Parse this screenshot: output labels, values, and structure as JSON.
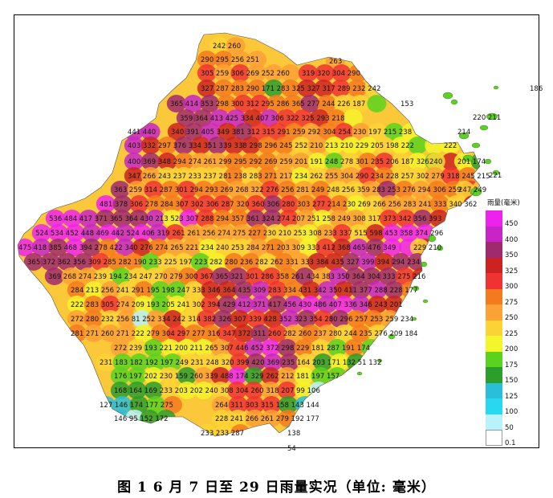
{
  "caption": "图 1  6 月 7 日至 29 日雨量实况（单位: 毫米）",
  "legend": {
    "title": "雨量(毫米)",
    "bins": [
      {
        "label": "450",
        "color": "#ee22ee"
      },
      {
        "label": "400",
        "color": "#c824c8"
      },
      {
        "label": "350",
        "color": "#a02a6e"
      },
      {
        "label": "325",
        "color": "#cc2222"
      },
      {
        "label": "300",
        "color": "#f03232"
      },
      {
        "label": "275",
        "color": "#f57a1e"
      },
      {
        "label": "250",
        "color": "#fba135"
      },
      {
        "label": "225",
        "color": "#fbd337"
      },
      {
        "label": "200",
        "color": "#f5f52b"
      },
      {
        "label": "175",
        "color": "#5ad21e"
      },
      {
        "label": "150",
        "color": "#2b9e2b"
      },
      {
        "label": "125",
        "color": "#2abfd9"
      },
      {
        "label": "100",
        "color": "#28d7f0"
      },
      {
        "label": "50",
        "color": "#b8f2fc"
      },
      {
        "label": "0.1",
        "color": "#ffffff"
      }
    ]
  },
  "stations": [
    [
      "242 260",
      247,
      41
    ],
    [
      "290 295 256 251",
      232,
      58
    ],
    [
      "263",
      392,
      60
    ],
    [
      "305 259 306 269 252 260",
      232,
      75
    ],
    [
      "319 320 304 290",
      358,
      75
    ],
    [
      "186",
      642,
      94
    ],
    [
      "327 287 283 290 171 283 325 327 317 289 232 242",
      232,
      94
    ],
    [
      "365 414 353 298 300 312 295 286 365 277 244 226 187",
      194,
      113
    ],
    [
      "153",
      481,
      113
    ],
    [
      "220 211",
      571,
      130
    ],
    [
      "359 364 413 425 334 407 306 322 325 293 218",
      206,
      131
    ],
    [
      "441 440",
      141,
      148
    ],
    [
      "340 391 405 349 381 312 315 291 259 292 304 254 230 197 215 238",
      195,
      148
    ],
    [
      "214",
      552,
      148
    ],
    [
      "222",
      535,
      165
    ],
    [
      "403 332 297 376 334 351 339 338 298 296 245 252 210 213 210 229 205 198 222",
      141,
      165
    ],
    [
      "400 369 348 294 274 261 299 295 292 269 259 201 191 248 278 301 235 206 187 326",
      141,
      185
    ],
    [
      "240",
      517,
      185
    ],
    [
      "201 174",
      552,
      185
    ],
    [
      "221",
      591,
      202
    ],
    [
      "347 266 243 237 233 237 281 238 283 271 217 234 262 255 304 290 234 228 257 302 279 318 245 215",
      141,
      203
    ],
    [
      "363 259 314 287 301 294 293 269 268 322 276 256 281 249 248 256 359 283 253 276 294 306 259",
      124,
      220
    ],
    [
      "247 249",
      553,
      220
    ],
    [
      "481 378 306 278 284 307 302 306 287 320 360 306 280 303 277 214 230 269 266 256 283 241 333 340 362",
      106,
      238
    ],
    [
      "536 484 417 371 365 364 430 213 523 307 288 294 357 361 324 274 207 251 258 249 308 317 373 342 356 393",
      43,
      256
    ],
    [
      "524 534 452 448 469 442 524 406 319 261 261 256 274 275 227 230 210 253 308 233 337 515 598 453 358 374 296",
      26,
      274
    ],
    [
      "475 418 385 468 394 278 422 340 276 274 265 221 234 240 253 284 271 203 309 333 412 368 465 476 349",
      5,
      292
    ],
    [
      "229 210",
      497,
      292
    ],
    [
      "365 372 362 356 309 285 282 190 233 225 197 223 282 280 236 282 262 331 333 384 435 327 399 394 294 234",
      16,
      310
    ],
    [
      "369 268 274 239 194 234 247 270 279 300 367 365 321 301 286 358 261 434 383 350 364 304 333 275 216",
      42,
      328
    ],
    [
      "284 213 256 241 291 195 198 247 333 346 364 435 309 283 334 431 342 350 411 377 288 228 177",
      70,
      345
    ],
    [
      "222 283 305 274 209 193 205 241 302 394 429 412 371 417 456 430 486 407 336 346 243 201",
      70,
      363
    ],
    [
      "272 280 232 256 81 252 334 242 314 382 326 307 339 428 352 323 354 280 296 257 253 259 234",
      70,
      381
    ],
    [
      "281 271 260 271 222 279 304 297 277 316 347 372 311 260 282 260 237 280 244 235 276 209 184",
      70,
      399
    ],
    [
      "272 239 193 221 200 211 265 307 446 452 372 298 229 181 287 191 174",
      124,
      417
    ],
    [
      "231 183 182 192 197 249 231 248 320 399 420 369 235 164 203 171 132 51 132",
      106,
      435
    ],
    [
      "176 197 202 230 159 260 339 488 174 329 262 212 181 197 157",
      124,
      452
    ],
    [
      "168 164 169 233 203 202 240 308 304 260 318 207 99 106",
      124,
      470
    ],
    [
      "127 146 174 177 275",
      106,
      488
    ],
    [
      "264 311 303 315 158 143 144",
      250,
      488
    ],
    [
      "146 95 152 172",
      124,
      505
    ],
    [
      "228 241 266 261 279 192 177",
      250,
      505
    ],
    [
      "233 233 287",
      232,
      523
    ],
    [
      "138",
      340,
      523
    ],
    [
      "54",
      340,
      542
    ]
  ]
}
